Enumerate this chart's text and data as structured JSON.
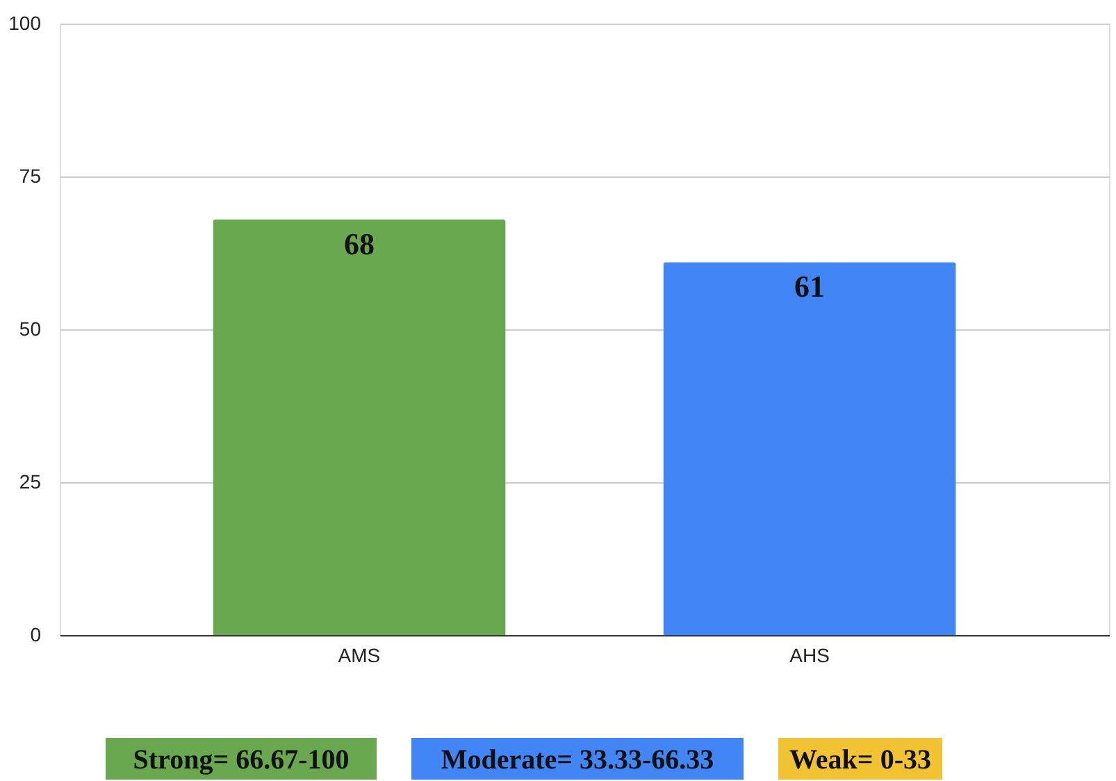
{
  "chart_data": {
    "type": "bar",
    "categories": [
      "AMS",
      "AHS"
    ],
    "values": [
      68,
      61
    ],
    "colors": [
      "#6aa84f",
      "#4285f4"
    ],
    "ylim": [
      0,
      100
    ],
    "yticks": [
      0,
      25,
      50,
      75,
      100
    ],
    "grid": "y",
    "data_labels": true,
    "annotations": [
      "Strong= 66.67-100",
      "Moderate= 33.33-66.33",
      "Weak= 0-33"
    ]
  }
}
